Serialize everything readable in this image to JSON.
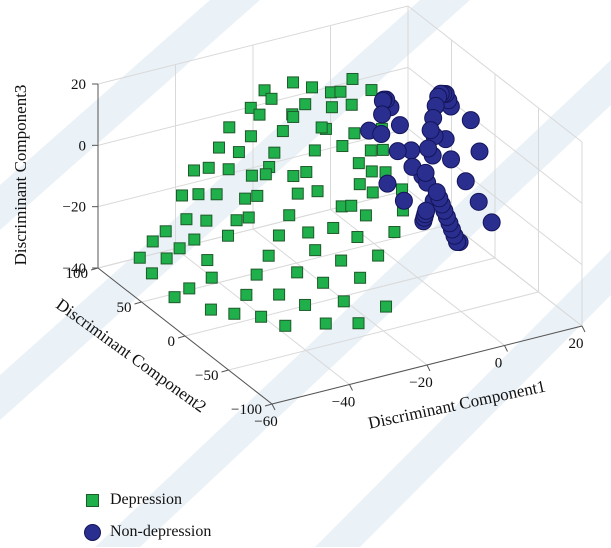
{
  "chart_data": {
    "type": "scatter",
    "title": "",
    "xlabel": "Discriminant Component1",
    "ylabel": "Discriminant Component2",
    "zlabel": "Discriminant Component3",
    "xlim": [
      -60,
      20
    ],
    "ylim": [
      -100,
      100
    ],
    "zlim": [
      -40,
      20
    ],
    "xticks": [
      "−60",
      "−40",
      "−20",
      "0",
      "20"
    ],
    "yticks": [
      "−100",
      "−50",
      "0",
      "50",
      "100"
    ],
    "zticks": [
      "−40",
      "−20",
      "0",
      "20"
    ],
    "grid": true,
    "legend_position": "bottom-left",
    "series": [
      {
        "name": "Depression",
        "marker": "square",
        "color": "#1fb04b",
        "edge_color": "#1e5a2a",
        "points": [
          [
            -34,
            40,
            8
          ],
          [
            -30,
            48,
            12
          ],
          [
            -26,
            52,
            15
          ],
          [
            -22,
            46,
            10
          ],
          [
            -38,
            36,
            5
          ],
          [
            -42,
            30,
            2
          ],
          [
            -46,
            26,
            -4
          ],
          [
            -50,
            20,
            -10
          ],
          [
            -54,
            16,
            -14
          ],
          [
            -56,
            24,
            -18
          ],
          [
            -58,
            30,
            -22
          ],
          [
            -60,
            38,
            -28
          ],
          [
            -52,
            10,
            -20
          ],
          [
            -48,
            4,
            -12
          ],
          [
            -44,
            -2,
            -6
          ],
          [
            -40,
            6,
            -2
          ],
          [
            -36,
            14,
            2
          ],
          [
            -32,
            22,
            6
          ],
          [
            -28,
            30,
            10
          ],
          [
            -24,
            36,
            12
          ],
          [
            -20,
            40,
            14
          ],
          [
            -18,
            30,
            8
          ],
          [
            -22,
            20,
            4
          ],
          [
            -26,
            12,
            0
          ],
          [
            -30,
            4,
            -4
          ],
          [
            -34,
            -4,
            -8
          ],
          [
            -38,
            -10,
            -12
          ],
          [
            -42,
            -16,
            -16
          ],
          [
            -46,
            -20,
            -20
          ],
          [
            -50,
            -26,
            -24
          ],
          [
            -54,
            -30,
            -28
          ],
          [
            -48,
            -34,
            -30
          ],
          [
            -42,
            -28,
            -26
          ],
          [
            -36,
            -22,
            -22
          ],
          [
            -30,
            -16,
            -18
          ],
          [
            -24,
            -10,
            -14
          ],
          [
            -18,
            -4,
            -10
          ],
          [
            -14,
            4,
            -6
          ],
          [
            -12,
            14,
            -2
          ],
          [
            -14,
            24,
            2
          ],
          [
            -16,
            34,
            6
          ],
          [
            -10,
            28,
            4
          ],
          [
            -8,
            18,
            0
          ],
          [
            -10,
            8,
            -4
          ],
          [
            -12,
            -2,
            -8
          ],
          [
            -16,
            -12,
            -12
          ],
          [
            -20,
            -20,
            -16
          ],
          [
            -26,
            -28,
            -20
          ],
          [
            -32,
            -34,
            -24
          ],
          [
            -38,
            -40,
            -28
          ],
          [
            -44,
            -44,
            -32
          ],
          [
            -34,
            -46,
            -34
          ],
          [
            -28,
            -40,
            -30
          ],
          [
            -22,
            -32,
            -26
          ],
          [
            -16,
            -26,
            -22
          ],
          [
            -10,
            -18,
            -18
          ],
          [
            -6,
            -10,
            -14
          ],
          [
            -4,
            0,
            -10
          ],
          [
            -6,
            10,
            -6
          ],
          [
            -4,
            22,
            -2
          ],
          [
            -2,
            32,
            2
          ],
          [
            -8,
            40,
            10
          ],
          [
            -12,
            46,
            14
          ],
          [
            -16,
            50,
            16
          ],
          [
            -20,
            54,
            18
          ],
          [
            -40,
            50,
            4
          ],
          [
            -44,
            44,
            0
          ],
          [
            -48,
            38,
            -6
          ],
          [
            -52,
            34,
            -12
          ],
          [
            -56,
            40,
            -16
          ],
          [
            -58,
            46,
            -20
          ],
          [
            -60,
            52,
            -26
          ],
          [
            -50,
            48,
            -8
          ],
          [
            -46,
            52,
            -2
          ],
          [
            -36,
            56,
            8
          ],
          [
            -30,
            58,
            12
          ],
          [
            -26,
            60,
            16
          ],
          [
            -32,
            28,
            0
          ],
          [
            -28,
            18,
            -2
          ],
          [
            -24,
            8,
            -6
          ],
          [
            -20,
            -2,
            -10
          ],
          [
            -44,
            12,
            -10
          ],
          [
            -40,
            20,
            -6
          ],
          [
            -36,
            30,
            -2
          ],
          [
            -54,
            -4,
            -22
          ],
          [
            -58,
            4,
            -26
          ],
          [
            -60,
            12,
            -30
          ],
          [
            -56,
            -12,
            -30
          ],
          [
            -26,
            -48,
            -36
          ],
          [
            -18,
            -44,
            -34
          ],
          [
            -14,
            36,
            12
          ],
          [
            -10,
            44,
            14
          ],
          [
            -6,
            48,
            16
          ],
          [
            -2,
            44,
            12
          ],
          [
            -30,
            -8,
            -14
          ]
        ]
      },
      {
        "name": "Non-depression",
        "marker": "circle",
        "color": "#2a2f8f",
        "edge_color": "#14145a",
        "points": [
          [
            -4,
            -30,
            10
          ],
          [
            -2,
            -24,
            14
          ],
          [
            0,
            -18,
            16
          ],
          [
            2,
            -12,
            18
          ],
          [
            4,
            -6,
            19
          ],
          [
            6,
            0,
            18
          ],
          [
            8,
            6,
            16
          ],
          [
            10,
            12,
            14
          ],
          [
            12,
            18,
            10
          ],
          [
            14,
            24,
            6
          ],
          [
            -6,
            -36,
            4
          ],
          [
            -4,
            -40,
            -2
          ],
          [
            -2,
            -34,
            -6
          ],
          [
            0,
            -28,
            -10
          ],
          [
            2,
            -22,
            -14
          ],
          [
            4,
            -16,
            -18
          ],
          [
            6,
            -10,
            -22
          ],
          [
            8,
            -4,
            -26
          ],
          [
            10,
            2,
            -30
          ],
          [
            12,
            8,
            -34
          ],
          [
            14,
            14,
            -36
          ],
          [
            10,
            26,
            -24
          ],
          [
            8,
            30,
            -16
          ],
          [
            6,
            34,
            -8
          ],
          [
            4,
            38,
            0
          ],
          [
            2,
            40,
            6
          ],
          [
            0,
            36,
            10
          ],
          [
            -2,
            30,
            12
          ],
          [
            -4,
            22,
            14
          ],
          [
            -6,
            14,
            12
          ],
          [
            -8,
            6,
            8
          ],
          [
            -6,
            -4,
            4
          ],
          [
            -4,
            -12,
            0
          ],
          [
            -2,
            -20,
            -4
          ],
          [
            0,
            -10,
            -16
          ],
          [
            2,
            0,
            -20
          ],
          [
            4,
            10,
            -24
          ],
          [
            6,
            20,
            -28
          ],
          [
            8,
            16,
            0
          ],
          [
            10,
            6,
            -6
          ],
          [
            12,
            -2,
            -12
          ],
          [
            14,
            -8,
            -18
          ],
          [
            16,
            -14,
            -24
          ],
          [
            16,
            0,
            -4
          ],
          [
            16,
            10,
            4
          ],
          [
            14,
            30,
            -6
          ],
          [
            12,
            36,
            -12
          ],
          [
            -8,
            -20,
            -8
          ],
          [
            -10,
            -10,
            -4
          ],
          [
            -8,
            20,
            6
          ]
        ]
      }
    ]
  },
  "watermark_color": "#c7d9e8"
}
